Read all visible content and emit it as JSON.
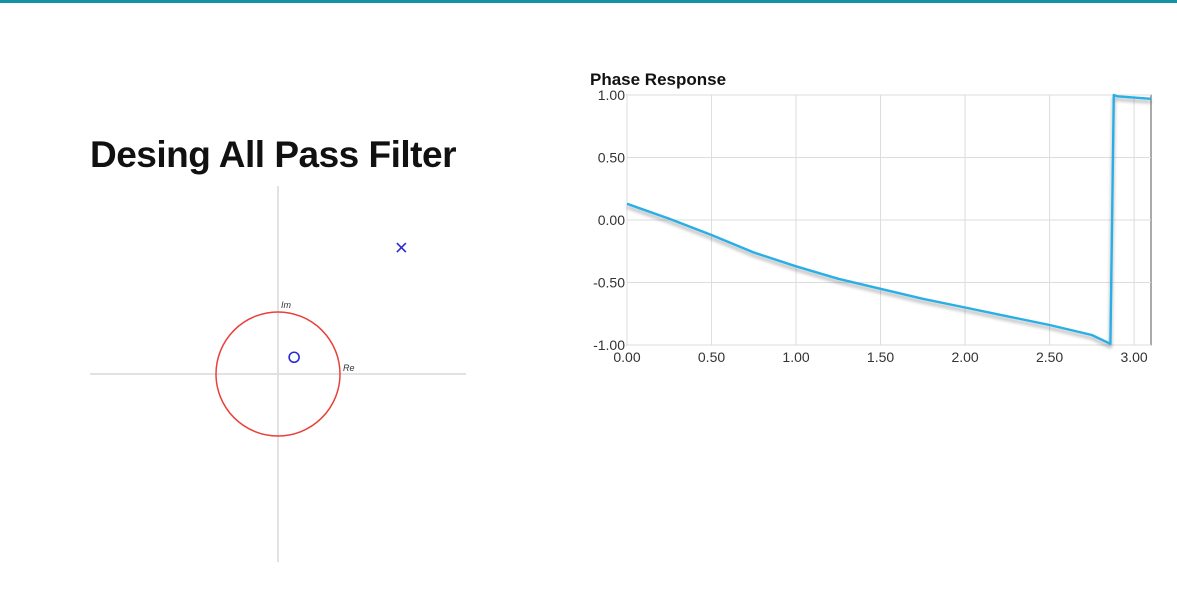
{
  "page": {
    "title": "Desing All Pass Filter",
    "accent_color": "#1593a6"
  },
  "zplane": {
    "im_label": "Im",
    "re_label": "Re",
    "unit_circle_color": "#e8403a",
    "marker_color": "#2b2bd6",
    "axis_color": "#d9d9d9",
    "zeros": [
      {
        "re": 0.26,
        "im": 0.27,
        "icon": "circle-icon"
      }
    ],
    "poles": [
      {
        "re": 1.99,
        "im": 2.04,
        "icon": "x-icon"
      }
    ]
  },
  "chart_data": {
    "type": "line",
    "title": "Phase Response",
    "xlabel": "",
    "ylabel": "",
    "xlim": [
      0,
      3.1
    ],
    "ylim": [
      -1.0,
      1.0
    ],
    "grid": true,
    "x_ticks": [
      "0.00",
      "0.50",
      "1.00",
      "1.50",
      "2.00",
      "2.50",
      "3.00"
    ],
    "y_ticks": [
      "1.00",
      "0.50",
      "0.00",
      "-0.50",
      "-1.00"
    ],
    "line_color": "#29aee6",
    "series": [
      {
        "x": [
          0,
          0.25,
          0.5,
          0.75,
          1.0,
          1.25,
          1.5,
          1.75,
          2.0,
          2.25,
          2.5,
          2.75,
          2.86,
          2.88,
          2.9,
          3.1
        ],
        "y": [
          0.13,
          0.01,
          -0.12,
          -0.26,
          -0.37,
          -0.47,
          -0.55,
          -0.63,
          -0.7,
          -0.77,
          -0.84,
          -0.92,
          -0.99,
          1.0,
          0.99,
          0.97
        ]
      }
    ]
  }
}
